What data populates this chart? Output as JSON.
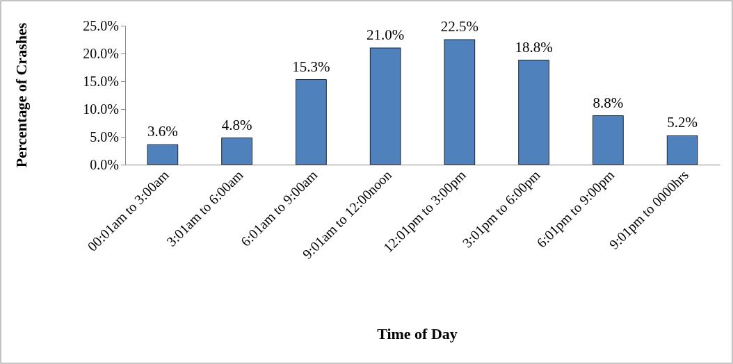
{
  "chart_data": {
    "type": "bar",
    "xlabel": "Time of Day",
    "ylabel": "Percentage of Crashes",
    "categories": [
      "00:01am to 3:00am",
      "3:01am to 6:00am",
      "6:01am to 9:00am",
      "9:01am to 12:00noon",
      "12:01pm to 3:00pm",
      "3:01pm to 6:00pm",
      "6:01pm to 9:00pm",
      "9:01pm to 0000hrs"
    ],
    "values": [
      3.6,
      4.8,
      15.3,
      21.0,
      22.5,
      18.8,
      8.8,
      5.2
    ],
    "value_labels": [
      "3.6%",
      "4.8%",
      "15.3%",
      "21.0%",
      "22.5%",
      "18.8%",
      "8.8%",
      "5.2%"
    ],
    "color": "#4f81bd",
    "ylim": [
      0,
      25
    ],
    "yticks": [
      {
        "value": 0,
        "label": "0.0%"
      },
      {
        "value": 5,
        "label": "5.0%"
      },
      {
        "value": 10,
        "label": "10.0%"
      },
      {
        "value": 15,
        "label": "15.0%"
      },
      {
        "value": 20,
        "label": "20.0%"
      },
      {
        "value": 25,
        "label": "25.0%"
      }
    ],
    "grid": false
  }
}
